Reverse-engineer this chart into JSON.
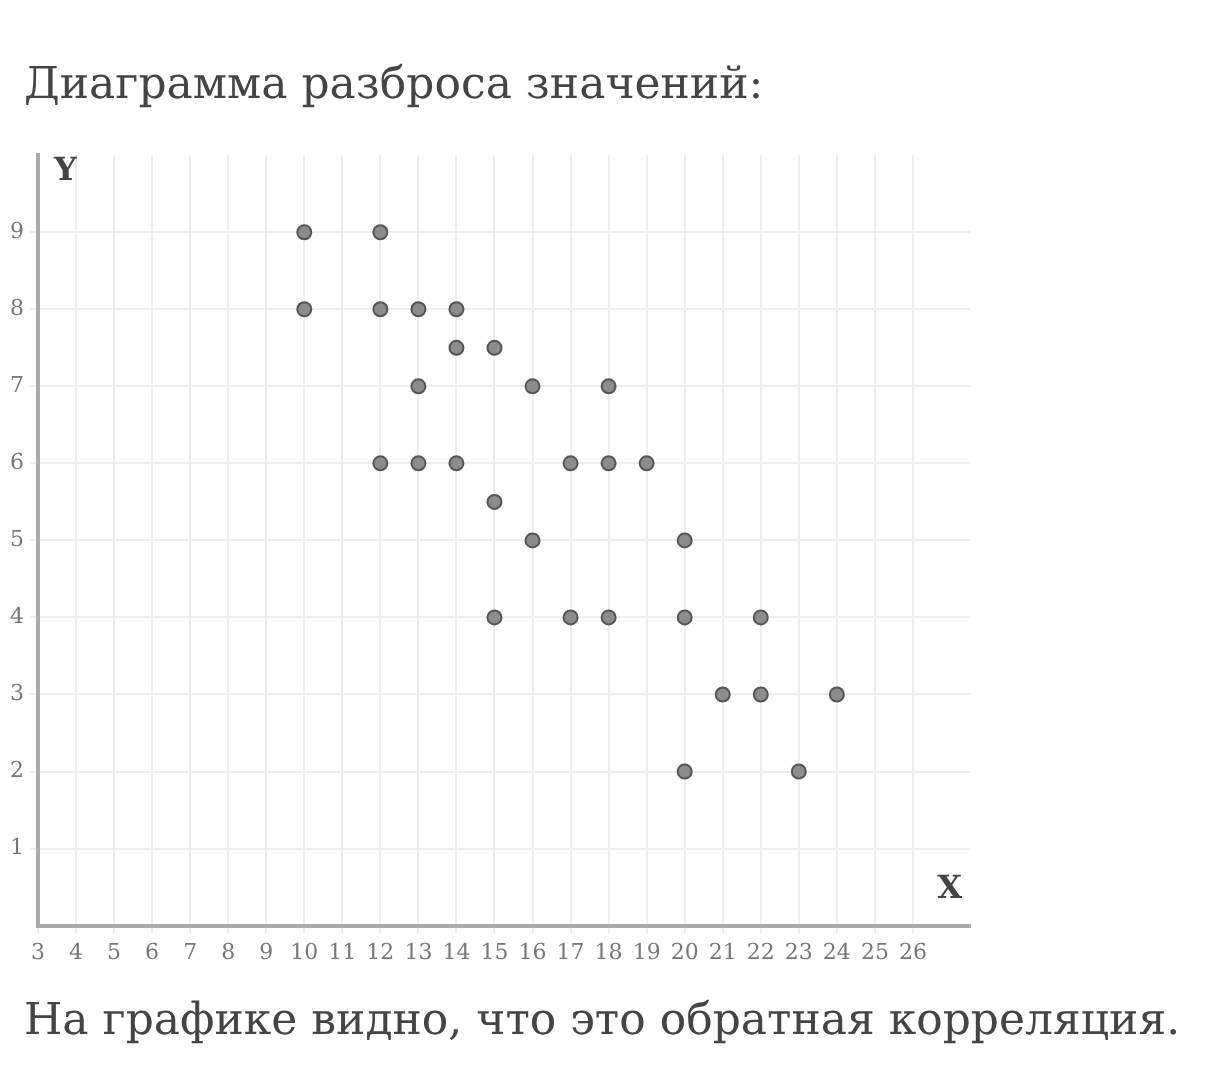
{
  "chart_data": {
    "type": "scatter",
    "title": "Диаграмма разброса значений:",
    "xlabel": "X",
    "ylabel": "Y",
    "annotations": [
      "На графике видно, что это обратная корреляция."
    ],
    "series": [
      {
        "color": "#8c8c8c",
        "x": [
          10,
          12,
          10,
          12,
          13,
          14,
          14,
          15,
          13,
          16,
          18,
          12,
          13,
          14,
          17,
          18,
          19,
          15,
          16,
          20,
          15,
          17,
          18,
          20,
          22,
          21,
          22,
          24,
          20,
          23
        ],
        "values": [
          9,
          9,
          8,
          8,
          8,
          8,
          7.5,
          7.5,
          7,
          7,
          7,
          6,
          6,
          6,
          6,
          6,
          6,
          5.5,
          5,
          5,
          4,
          4,
          4,
          4,
          4,
          3,
          3,
          3,
          2,
          2
        ]
      }
    ],
    "xlim": [
      3,
      27.5
    ],
    "xticks": [
      3,
      4,
      5,
      6,
      7,
      8,
      9,
      10,
      11,
      12,
      13,
      14,
      15,
      16,
      17,
      18,
      19,
      20,
      21,
      22,
      23,
      24,
      25,
      26
    ],
    "ylim": [
      0,
      10
    ],
    "yticks": [
      1,
      2,
      3,
      4,
      5,
      6,
      7,
      8,
      9
    ],
    "grid": true,
    "marker": "circle"
  }
}
